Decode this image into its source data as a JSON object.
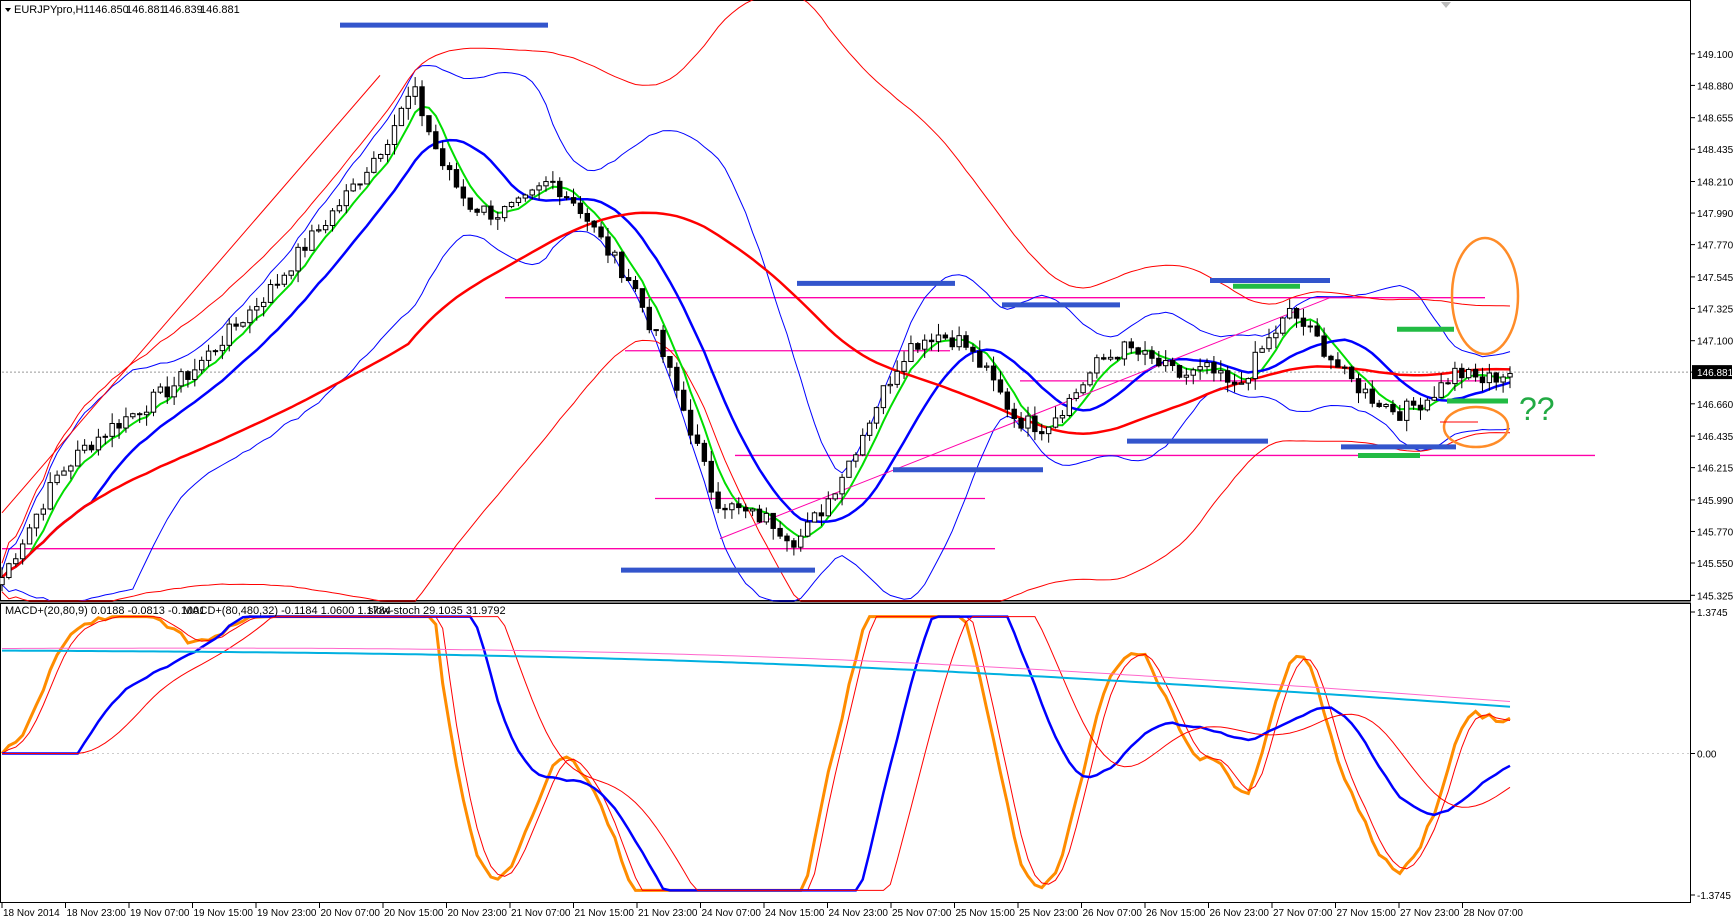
{
  "chart_data": {
    "type": "candlestick",
    "symbol_header": "EURJPYpro,H1",
    "ohlc_header": [
      "146.850",
      "146.881",
      "146.839",
      "146.881"
    ],
    "current_price": "146.881",
    "price_axis": {
      "ticks": [
        "149.100",
        "148.880",
        "148.655",
        "148.435",
        "148.210",
        "147.990",
        "147.770",
        "147.545",
        "147.325",
        "147.100",
        "146.881",
        "146.660",
        "146.435",
        "146.215",
        "145.990",
        "145.770",
        "145.550",
        "145.325"
      ],
      "ylim": [
        145.32,
        149.35
      ]
    },
    "time_axis": {
      "labels": [
        "18 Nov 2014",
        "18 Nov 23:00",
        "19 Nov 07:00",
        "19 Nov 15:00",
        "19 Nov 23:00",
        "20 Nov 07:00",
        "20 Nov 15:00",
        "20 Nov 23:00",
        "21 Nov 07:00",
        "21 Nov 15:00",
        "21 Nov 23:00",
        "24 Nov 07:00",
        "24 Nov 15:00",
        "24 Nov 23:00",
        "25 Nov 07:00",
        "25 Nov 15:00",
        "25 Nov 23:00",
        "26 Nov 07:00",
        "26 Nov 15:00",
        "26 Nov 23:00",
        "27 Nov 07:00",
        "27 Nov 15:00",
        "27 Nov 23:00",
        "28 Nov 07:00"
      ]
    },
    "close_path": [
      145.45,
      145.8,
      146.15,
      146.35,
      146.5,
      146.62,
      146.75,
      146.9,
      147.1,
      147.3,
      147.5,
      147.75,
      147.98,
      148.22,
      148.5,
      148.85,
      148.35,
      148.05,
      147.98,
      148.05,
      148.22,
      148.05,
      147.75,
      147.5,
      147.05,
      146.55,
      146.0,
      145.9,
      145.85,
      145.7,
      145.95,
      146.3,
      146.7,
      147.05,
      147.15,
      147.1,
      146.85,
      146.55,
      146.5,
      146.7,
      146.95,
      147.05,
      146.95,
      146.85,
      146.9,
      146.75,
      147.05,
      147.3,
      147.1,
      146.85,
      146.7,
      146.6,
      146.7,
      146.88,
      146.82,
      146.881
    ],
    "indicator_headers": [
      "MACD+(20,80,9) 0.0188 -0.0813 -0.1001",
      "MACD+(80,480,32) -0.1184 1.0600 1.1784",
      "slow-stoch 29.1035 31.9792"
    ],
    "indicator_axis": {
      "ticks": [
        "1.3745",
        "0.00",
        "-1.3745"
      ],
      "ylim": [
        -1.3745,
        1.3745
      ]
    },
    "annotation_text": "??",
    "level_lines": [
      147.4,
      147.03,
      146.3,
      146.0,
      145.65
    ],
    "colors": {
      "candles": "#000000",
      "bb_outer": "#ff0000",
      "bb_inner": "#0000ff",
      "ma_fast": "#00dd00",
      "ma_mid": "#0000ff",
      "ma_slow": "#ff0000",
      "levels": "#ff00aa",
      "zones": "#3355cc",
      "green_marks": "#22bb44",
      "circles": "#ff8c28",
      "stoch": "#ff8c00",
      "macd_slow": "#00b0e0",
      "macd_signal": "#ff66cc"
    }
  }
}
